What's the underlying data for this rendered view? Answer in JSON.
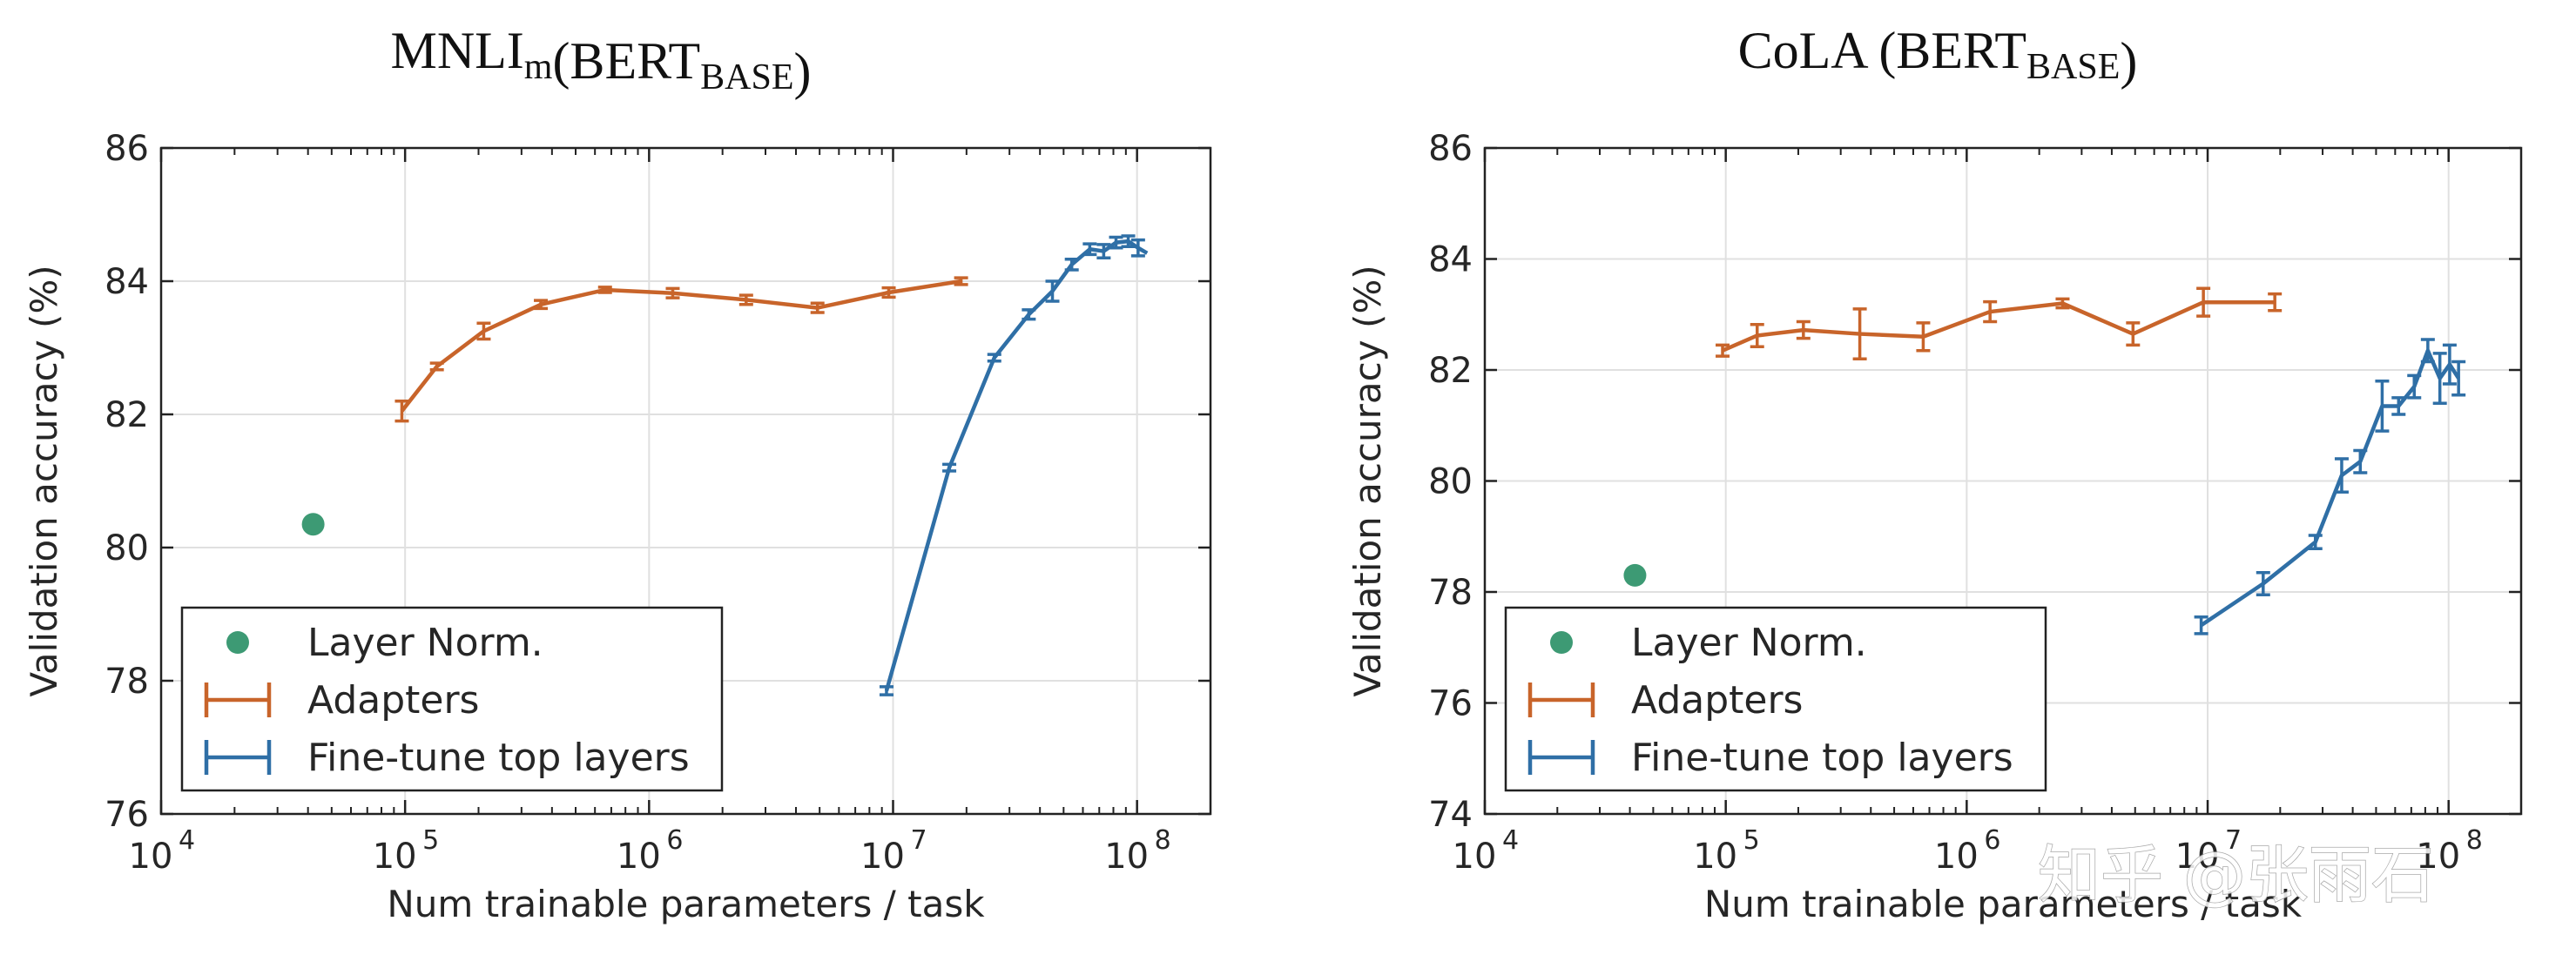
{
  "watermark": "知乎 @张雨石",
  "colors": {
    "adapters": "#c8642a",
    "finetune": "#2f6fa6",
    "layernorm": "#3d9a74",
    "grid": "#e0e0e0",
    "axis": "#222222"
  },
  "chart_data": [
    {
      "type": "line",
      "title": "MNLI",
      "title_sub": "m",
      "title_mid": "(BERT",
      "title_sub2": "BASE",
      "title_end": ")",
      "xlabel": "Num trainable parameters / task",
      "ylabel": "Validation accuracy (%)",
      "xscale": "log",
      "xlim": [
        10000,
        200000000
      ],
      "ylim": [
        76,
        86
      ],
      "yticks": [
        76,
        78,
        80,
        82,
        84,
        86
      ],
      "xtick_labels": [
        "10",
        "10",
        "10",
        "10",
        "10"
      ],
      "xtick_exponents": [
        "4",
        "5",
        "6",
        "7",
        "8"
      ],
      "grid": true,
      "legend": "lower-left",
      "series": [
        {
          "name": "Layer Norm.",
          "kind": "point",
          "x": [
            42000
          ],
          "y": [
            80.35
          ],
          "err": [
            0
          ]
        },
        {
          "name": "Adapters",
          "kind": "errorline",
          "x": [
            97000,
            135000,
            210000,
            360000,
            660000,
            1250000,
            2500000,
            4900000,
            9600000,
            19000000
          ],
          "y": [
            82.05,
            82.72,
            83.25,
            83.65,
            83.87,
            83.82,
            83.72,
            83.6,
            83.83,
            84.0
          ],
          "err": [
            0.15,
            0.05,
            0.12,
            0.06,
            0.04,
            0.07,
            0.07,
            0.07,
            0.07,
            0.05
          ]
        },
        {
          "name": "Fine-tune top layers",
          "kind": "errorline",
          "x": [
            9400000,
            17000000,
            26000000,
            36000000,
            45000000,
            54000000,
            64000000,
            73000000,
            82000000,
            92000000,
            101000000,
            110000000
          ],
          "y": [
            77.85,
            81.2,
            82.85,
            83.5,
            83.85,
            84.25,
            84.48,
            84.45,
            84.58,
            84.6,
            84.5,
            84.42
          ],
          "err": [
            0.06,
            0.05,
            0.05,
            0.07,
            0.15,
            0.08,
            0.08,
            0.1,
            0.08,
            0.08,
            0.12,
            0.0
          ]
        }
      ]
    },
    {
      "type": "line",
      "title": "CoLA (BERT",
      "title_sub": "BASE",
      "title_end": ")",
      "xlabel": "Num trainable parameters / task",
      "ylabel": "Validation accuracy (%)",
      "xscale": "log",
      "xlim": [
        10000,
        200000000
      ],
      "ylim": [
        74,
        86
      ],
      "yticks": [
        74,
        76,
        78,
        80,
        82,
        84,
        86
      ],
      "xtick_labels": [
        "10",
        "10",
        "10",
        "10",
        "10"
      ],
      "xtick_exponents": [
        "4",
        "5",
        "6",
        "7",
        "8"
      ],
      "grid": true,
      "legend": "lower-left",
      "series": [
        {
          "name": "Layer Norm.",
          "kind": "point",
          "x": [
            42000
          ],
          "y": [
            78.3
          ],
          "err": [
            0
          ]
        },
        {
          "name": "Adapters",
          "kind": "errorline",
          "x": [
            97000,
            135000,
            210000,
            360000,
            660000,
            1250000,
            2500000,
            4900000,
            9600000,
            19000000
          ],
          "y": [
            82.35,
            82.62,
            82.72,
            82.65,
            82.6,
            83.05,
            83.2,
            82.65,
            83.22,
            83.22
          ],
          "err": [
            0.1,
            0.2,
            0.15,
            0.45,
            0.25,
            0.18,
            0.08,
            0.2,
            0.25,
            0.15
          ]
        },
        {
          "name": "Fine-tune top layers",
          "kind": "errorline",
          "x": [
            9400000,
            17000000,
            28000000,
            36000000,
            43000000,
            53000000,
            62000000,
            72000000,
            82000000,
            92000000,
            101000000,
            110000000
          ],
          "y": [
            77.4,
            78.15,
            78.9,
            80.1,
            80.35,
            81.35,
            81.35,
            81.7,
            82.35,
            81.85,
            82.1,
            81.85
          ],
          "err": [
            0.15,
            0.2,
            0.12,
            0.3,
            0.2,
            0.45,
            0.15,
            0.2,
            0.2,
            0.45,
            0.35,
            0.3
          ]
        }
      ]
    }
  ]
}
